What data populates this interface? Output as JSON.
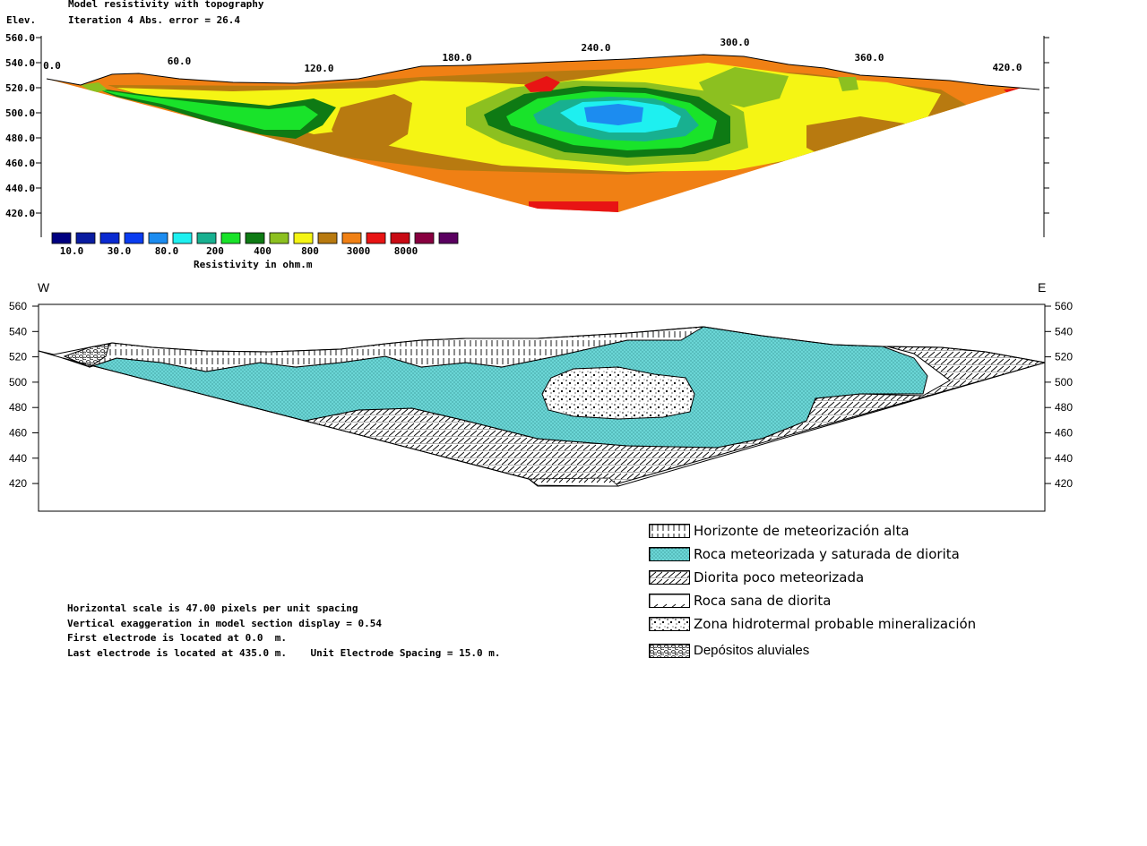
{
  "top_section": {
    "title": "Model resistivity with topography",
    "iteration": "Iteration 4 Abs. error = 26.4",
    "elev_label": "Elev.",
    "y_ticks": [
      "560.0",
      "540.0",
      "520.0",
      "500.0",
      "480.0",
      "460.0",
      "440.0",
      "420.0"
    ],
    "x_ticks": [
      "0.0",
      "60.0",
      "120.0",
      "180.0",
      "240.0",
      "300.0",
      "360.0",
      "420.0"
    ],
    "colorbar": {
      "colors": [
        "#000080",
        "#0a1ca0",
        "#0a2ad0",
        "#0a3cf0",
        "#1c8cf0",
        "#1ef0f0",
        "#18b090",
        "#19e32a",
        "#0e7a14",
        "#8cc020",
        "#f5f514",
        "#b87a10",
        "#f08014",
        "#e81414",
        "#c80a14",
        "#880040",
        "#5a0060"
      ],
      "tick_labels": [
        "10.0",
        "30.0",
        "80.0",
        "200",
        "400",
        "800",
        "3000",
        "8000"
      ],
      "label": "Resistivity in ohm.m"
    }
  },
  "bottom_section": {
    "west_label": "W",
    "east_label": "E",
    "y_ticks": [
      "560",
      "540",
      "520",
      "500",
      "480",
      "460",
      "440",
      "420"
    ]
  },
  "legend": {
    "items": [
      {
        "label": "Horizonte de meteorización alta",
        "pattern": "vertical-hatch"
      },
      {
        "label": "Roca meteorizada y saturada de diorita",
        "pattern": "cyan-dots"
      },
      {
        "label": "Diorita poco meteorizada",
        "pattern": "diagonal-hatch"
      },
      {
        "label": "Roca sana de diorita",
        "pattern": "slash-lines"
      },
      {
        "label": "Zona hidrotermal probable mineralización",
        "pattern": "stipple"
      },
      {
        "label": "Depósitos aluviales",
        "pattern": "gravel"
      }
    ]
  },
  "notes": [
    "Horizontal scale is 47.00 pixels per unit spacing",
    "Vertical exaggeration in model section display = 0.54",
    "First electrode is located at 0.0  m.",
    "Last electrode is located at 435.0 m.    Unit Electrode Spacing = 15.0 m."
  ]
}
